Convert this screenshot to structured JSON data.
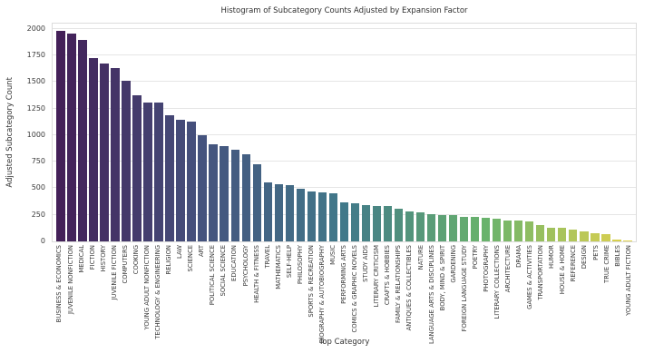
{
  "chart_data": {
    "type": "bar",
    "title": "Histogram of Subcategory Counts Adjusted by Expansion Factor",
    "xlabel": "Top Category",
    "ylabel": "Adjusted Subcategory Count",
    "ylim": [
      0,
      2050
    ],
    "yticks": [
      0,
      250,
      500,
      750,
      1000,
      1250,
      1500,
      1750,
      2000
    ],
    "grid": true,
    "legend": false,
    "tick_label_rotation": 90,
    "palette_name": "viridis-desaturated",
    "palette_stops": [
      "#432058",
      "#45537e",
      "#41798a",
      "#69b36c",
      "#e0d24e"
    ],
    "grid_color": "#e5e5e5",
    "border_color": "#dcdcdc",
    "text_color": "#3a3a3a",
    "background_color": "#ffffff",
    "categories": [
      "BUSINESS & ECONOMICS",
      "JUVENILE NONFICTION",
      "MEDICAL",
      "FICTION",
      "HISTORY",
      "JUVENILE FICTION",
      "COMPUTERS",
      "COOKING",
      "YOUNG ADULT NONFICTION",
      "TECHNOLOGY & ENGINEERING",
      "RELIGION",
      "LAW",
      "SCIENCE",
      "ART",
      "POLITICAL SCIENCE",
      "SOCIAL SCIENCE",
      "EDUCATION",
      "PSYCHOLOGY",
      "HEALTH & FITNESS",
      "TRAVEL",
      "MATHEMATICS",
      "SELF-HELP",
      "PHILOSOPHY",
      "SPORTS & RECREATION",
      "BIOGRAPHY & AUTOBIOGRAPHY",
      "MUSIC",
      "PERFORMING ARTS",
      "COMICS & GRAPHIC NOVELS",
      "STUDY AIDS",
      "LITERARY CRITICISM",
      "CRAFTS & HOBBIES",
      "FAMILY & RELATIONSHIPS",
      "ANTIQUES & COLLECTIBLES",
      "NATURE",
      "LANGUAGE ARTS & DISCIPLINES",
      "BODY, MIND & SPIRIT",
      "GARDENING",
      "FOREIGN LANGUAGE STUDY",
      "POETRY",
      "PHOTOGRAPHY",
      "LITERARY COLLECTIONS",
      "ARCHITECTURE",
      "DRAMA",
      "GAMES & ACTIVITIES",
      "TRANSPORTATION",
      "HUMOR",
      "HOUSE & HOME",
      "REFERENCE",
      "DESIGN",
      "PETS",
      "TRUE CRIME",
      "BIBLES",
      "YOUNG ADULT FICTION"
    ],
    "values": [
      1980,
      1955,
      1900,
      1725,
      1675,
      1630,
      1510,
      1375,
      1310,
      1305,
      1190,
      1145,
      1130,
      1000,
      915,
      900,
      860,
      820,
      730,
      555,
      540,
      530,
      495,
      470,
      465,
      455,
      370,
      360,
      340,
      335,
      330,
      310,
      285,
      270,
      260,
      250,
      245,
      235,
      230,
      225,
      210,
      200,
      195,
      190,
      155,
      130,
      125,
      110,
      95,
      75,
      68,
      18,
      12
    ]
  }
}
